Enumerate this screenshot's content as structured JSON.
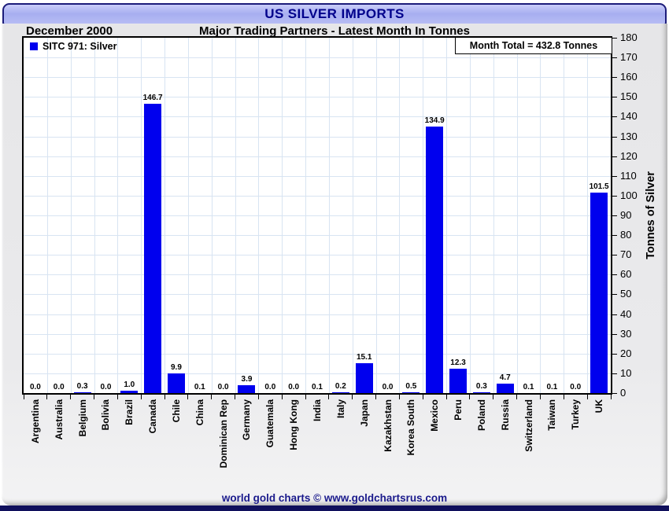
{
  "header": {
    "title": "US SILVER IMPORTS"
  },
  "subtitle": {
    "date": "December 2000",
    "text": "Major Trading Partners - Latest Month In Tonnes"
  },
  "legend": {
    "label": "SITC 971: Silver"
  },
  "annotations": {
    "month_total": "Month Total = 432.8 Tonnes"
  },
  "footer": {
    "text": "world gold charts © www.goldchartsrus.com"
  },
  "colors": {
    "bar": "#0000EE",
    "navy_text": "#00008B",
    "frame": "#1c1c7a",
    "bottom_bar": "#10105c",
    "grid": "#d8e4f2",
    "plot_bg": "#ffffff",
    "panel_bg": "#e8e8ea"
  },
  "chart_data": {
    "type": "bar",
    "title": "US SILVER IMPORTS",
    "subtitle": "Major Trading Partners - Latest Month In Tonnes",
    "period": "December 2000",
    "series_label": "SITC 971: Silver",
    "month_total_tonnes": 432.8,
    "categories": [
      "Argentina",
      "Australia",
      "Belgium",
      "Bolivia",
      "Brazil",
      "Canada",
      "Chile",
      "China",
      "Dominican Rep",
      "Germany",
      "Guatemala",
      "Hong Kong",
      "India",
      "Italy",
      "Japan",
      "Kazakhstan",
      "Korea South",
      "Mexico",
      "Peru",
      "Poland",
      "Russia",
      "Switzerland",
      "Taiwan",
      "Turkey",
      "UK"
    ],
    "values": [
      0.0,
      0.0,
      0.3,
      0.0,
      1.0,
      146.7,
      9.9,
      0.1,
      0.0,
      3.9,
      0.0,
      0.0,
      0.1,
      0.2,
      15.1,
      0.0,
      0.5,
      134.9,
      12.3,
      0.3,
      4.7,
      0.1,
      0.1,
      0.0,
      101.5
    ],
    "xlabel": "",
    "ylabel": "Tonnes of Silver",
    "ylim": [
      0,
      180
    ],
    "ytick_step": 10,
    "yaxis_side": "right",
    "grid": true,
    "value_labels": true,
    "legend_position": "top-left"
  }
}
